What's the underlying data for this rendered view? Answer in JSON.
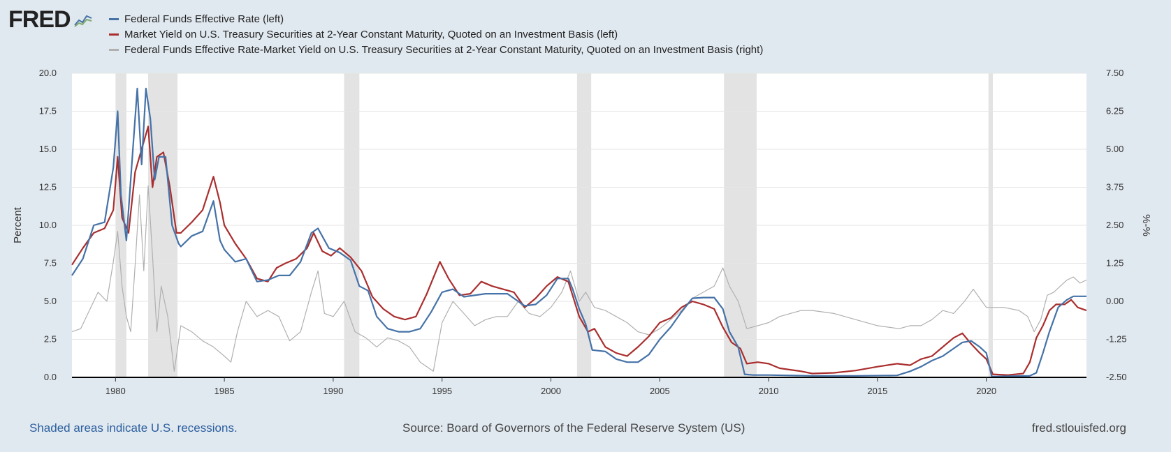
{
  "logo": {
    "text": "FRED"
  },
  "footer": {
    "recession_note": "Shaded areas indicate U.S. recessions.",
    "source": "Source: Board of Governors of the Federal Reserve System (US)",
    "site": "fred.stlouisfed.org"
  },
  "chart_data": {
    "type": "line",
    "title": "",
    "ylabel_left": "Percent",
    "ylabel_right": "%-%",
    "ylim_left": [
      0,
      20
    ],
    "ylim_right": [
      -2.5,
      7.5
    ],
    "xlim": [
      1978.0,
      2024.6
    ],
    "yticks_left": [
      "0.0",
      "2.5",
      "5.0",
      "7.5",
      "10.0",
      "12.5",
      "15.0",
      "17.5",
      "20.0"
    ],
    "yticks_right": [
      "-2.50",
      "-1.25",
      "0.00",
      "1.25",
      "2.50",
      "3.75",
      "5.00",
      "6.25",
      "7.50"
    ],
    "xticks": [
      "1980",
      "1985",
      "1990",
      "1995",
      "2000",
      "2005",
      "2010",
      "2015",
      "2020"
    ],
    "grid": true,
    "legend_position": "top-left",
    "recessions": [
      [
        1980.0,
        1980.5
      ],
      [
        1981.5,
        1982.85
      ],
      [
        1990.5,
        1991.2
      ],
      [
        2001.2,
        2001.85
      ],
      [
        2007.95,
        2009.45
      ],
      [
        2020.1,
        2020.3
      ]
    ],
    "series": [
      {
        "name": "Federal Funds Effective Rate (left)",
        "color": "#4572a7",
        "axis": "left",
        "x": [
          1978.0,
          1978.5,
          1979.0,
          1979.5,
          1979.9,
          1980.1,
          1980.25,
          1980.5,
          1980.8,
          1981.0,
          1981.2,
          1981.4,
          1981.6,
          1981.8,
          1982.0,
          1982.3,
          1982.6,
          1982.9,
          1983.0,
          1983.5,
          1984.0,
          1984.5,
          1984.8,
          1985.0,
          1985.5,
          1986.0,
          1986.5,
          1987.0,
          1987.5,
          1988.0,
          1988.5,
          1989.0,
          1989.3,
          1989.8,
          1990.3,
          1990.8,
          1991.2,
          1991.6,
          1992.0,
          1992.5,
          1993.0,
          1993.5,
          1994.0,
          1994.5,
          1995.0,
          1995.5,
          1996.0,
          1997.0,
          1998.0,
          1998.8,
          1999.3,
          1999.8,
          2000.3,
          2000.8,
          2001.0,
          2001.3,
          2001.6,
          2001.9,
          2002.5,
          2003.0,
          2003.5,
          2004.0,
          2004.5,
          2005.0,
          2005.5,
          2006.0,
          2006.5,
          2007.0,
          2007.5,
          2007.9,
          2008.2,
          2008.6,
          2008.9,
          2009.3,
          2010.0,
          2012.0,
          2014.0,
          2015.9,
          2016.5,
          2017.0,
          2017.5,
          2018.0,
          2018.5,
          2018.9,
          2019.3,
          2019.7,
          2020.0,
          2020.25,
          2021.0,
          2022.0,
          2022.3,
          2022.6,
          2022.9,
          2023.3,
          2023.7,
          2024.0,
          2024.6
        ],
        "y": [
          6.7,
          7.8,
          10.0,
          10.2,
          13.8,
          17.5,
          12.0,
          9.0,
          15.0,
          19.0,
          14.0,
          19.0,
          17.0,
          13.0,
          14.5,
          14.5,
          10.0,
          8.8,
          8.6,
          9.3,
          9.6,
          11.6,
          9.0,
          8.4,
          7.6,
          7.8,
          6.3,
          6.4,
          6.7,
          6.7,
          7.6,
          9.5,
          9.8,
          8.5,
          8.2,
          7.7,
          6.0,
          5.7,
          4.0,
          3.2,
          3.0,
          3.0,
          3.2,
          4.3,
          5.6,
          5.8,
          5.3,
          5.5,
          5.5,
          4.7,
          4.8,
          5.4,
          6.5,
          6.5,
          5.8,
          4.5,
          3.5,
          1.8,
          1.7,
          1.2,
          1.0,
          1.0,
          1.5,
          2.5,
          3.3,
          4.3,
          5.2,
          5.25,
          5.25,
          4.5,
          3.0,
          2.0,
          0.2,
          0.15,
          0.15,
          0.1,
          0.1,
          0.13,
          0.4,
          0.7,
          1.1,
          1.4,
          1.9,
          2.3,
          2.4,
          2.0,
          1.6,
          0.05,
          0.08,
          0.1,
          0.3,
          1.6,
          3.0,
          4.6,
          5.1,
          5.33,
          5.33
        ]
      },
      {
        "name": "Market Yield on U.S. Treasury Securities at 2-Year Constant Maturity, Quoted on an Investment Basis (left)",
        "color": "#aa2e2e",
        "axis": "left",
        "x": [
          1978.0,
          1978.5,
          1979.0,
          1979.5,
          1979.9,
          1980.1,
          1980.3,
          1980.6,
          1980.9,
          1981.2,
          1981.5,
          1981.7,
          1981.9,
          1982.2,
          1982.5,
          1982.8,
          1983.0,
          1983.5,
          1984.0,
          1984.5,
          1984.8,
          1985.0,
          1985.5,
          1986.0,
          1986.5,
          1987.0,
          1987.4,
          1987.8,
          1988.3,
          1988.8,
          1989.1,
          1989.5,
          1989.9,
          1990.3,
          1990.8,
          1991.3,
          1991.8,
          1992.3,
          1992.8,
          1993.3,
          1993.8,
          1994.3,
          1994.9,
          1995.3,
          1995.8,
          1996.3,
          1996.8,
          1997.3,
          1997.8,
          1998.3,
          1998.8,
          1999.3,
          1999.8,
          2000.3,
          2000.8,
          2001.3,
          2001.7,
          2002.0,
          2002.5,
          2003.0,
          2003.5,
          2004.0,
          2004.5,
          2005.0,
          2005.5,
          2006.0,
          2006.5,
          2007.0,
          2007.5,
          2007.9,
          2008.3,
          2008.7,
          2009.0,
          2009.5,
          2010.0,
          2010.5,
          2011.0,
          2011.5,
          2012.0,
          2013.0,
          2014.0,
          2015.0,
          2015.9,
          2016.5,
          2017.0,
          2017.5,
          2018.0,
          2018.5,
          2018.9,
          2019.3,
          2019.7,
          2020.0,
          2020.3,
          2021.0,
          2021.7,
          2022.0,
          2022.3,
          2022.6,
          2022.9,
          2023.2,
          2023.6,
          2023.9,
          2024.2,
          2024.6
        ],
        "y": [
          7.4,
          8.5,
          9.5,
          9.8,
          11.0,
          14.5,
          10.5,
          9.5,
          13.5,
          15.0,
          16.5,
          12.5,
          14.5,
          14.8,
          12.5,
          9.5,
          9.5,
          10.2,
          11.0,
          13.2,
          11.5,
          10.0,
          8.8,
          7.8,
          6.5,
          6.3,
          7.2,
          7.5,
          7.8,
          8.5,
          9.5,
          8.3,
          8.0,
          8.5,
          7.9,
          7.0,
          5.3,
          4.5,
          4.0,
          3.8,
          4.0,
          5.5,
          7.6,
          6.5,
          5.4,
          5.5,
          6.3,
          6.0,
          5.8,
          5.6,
          4.6,
          5.2,
          6.0,
          6.6,
          6.3,
          4.0,
          3.0,
          3.2,
          2.0,
          1.6,
          1.4,
          2.0,
          2.7,
          3.6,
          3.9,
          4.6,
          5.0,
          4.8,
          4.5,
          3.3,
          2.3,
          1.9,
          0.9,
          1.0,
          0.9,
          0.6,
          0.5,
          0.4,
          0.25,
          0.3,
          0.45,
          0.7,
          0.9,
          0.8,
          1.2,
          1.4,
          2.0,
          2.6,
          2.9,
          2.2,
          1.6,
          1.2,
          0.2,
          0.15,
          0.25,
          1.0,
          2.6,
          3.4,
          4.4,
          4.8,
          4.8,
          5.1,
          4.6,
          4.4
        ]
      },
      {
        "name": "Federal Funds Effective Rate-Market Yield on U.S. Treasury Securities at 2-Year Constant Maturity, Quoted on an Investment Basis (right)",
        "color": "#b0b0b0",
        "axis": "right",
        "x": [
          1978.0,
          1978.4,
          1978.8,
          1979.2,
          1979.6,
          1979.9,
          1980.1,
          1980.3,
          1980.5,
          1980.7,
          1980.9,
          1981.1,
          1981.3,
          1981.5,
          1981.7,
          1981.9,
          1982.1,
          1982.4,
          1982.7,
          1983.0,
          1983.5,
          1984.0,
          1984.5,
          1985.0,
          1985.3,
          1985.6,
          1986.0,
          1986.5,
          1987.0,
          1987.5,
          1988.0,
          1988.5,
          1989.0,
          1989.3,
          1989.6,
          1990.0,
          1990.5,
          1991.0,
          1991.5,
          1992.0,
          1992.5,
          1993.0,
          1993.5,
          1994.0,
          1994.6,
          1995.0,
          1995.5,
          1996.0,
          1996.5,
          1997.0,
          1997.5,
          1998.0,
          1998.5,
          1999.0,
          1999.5,
          2000.0,
          2000.5,
          2000.9,
          2001.3,
          2001.6,
          2002.0,
          2002.5,
          2003.0,
          2003.5,
          2004.0,
          2004.5,
          2005.0,
          2005.5,
          2006.0,
          2006.5,
          2007.0,
          2007.5,
          2007.9,
          2008.2,
          2008.6,
          2009.0,
          2009.5,
          2010.0,
          2010.5,
          2011.0,
          2011.5,
          2012.0,
          2013.0,
          2014.0,
          2015.0,
          2016.0,
          2016.5,
          2017.0,
          2017.5,
          2018.0,
          2018.5,
          2019.0,
          2019.4,
          2019.8,
          2020.0,
          2020.3,
          2020.8,
          2021.5,
          2021.9,
          2022.2,
          2022.5,
          2022.8,
          2023.1,
          2023.4,
          2023.7,
          2024.0,
          2024.3,
          2024.6
        ],
        "y": [
          -1.0,
          -0.9,
          -0.3,
          0.3,
          0.0,
          1.3,
          2.3,
          0.5,
          -0.5,
          -1.0,
          1.2,
          3.5,
          1.0,
          3.8,
          1.5,
          -1.0,
          0.5,
          -0.5,
          -2.3,
          -0.8,
          -1.0,
          -1.3,
          -1.5,
          -1.8,
          -2.0,
          -1.0,
          0.0,
          -0.5,
          -0.3,
          -0.5,
          -1.3,
          -1.0,
          0.3,
          1.0,
          -0.4,
          -0.5,
          0.0,
          -1.0,
          -1.2,
          -1.5,
          -1.2,
          -1.3,
          -1.5,
          -2.0,
          -2.3,
          -0.7,
          0.0,
          -0.4,
          -0.8,
          -0.6,
          -0.5,
          -0.5,
          0.0,
          -0.4,
          -0.5,
          -0.2,
          0.3,
          1.0,
          0.0,
          0.3,
          -0.2,
          -0.3,
          -0.5,
          -0.7,
          -1.0,
          -1.1,
          -0.9,
          -0.6,
          -0.3,
          0.1,
          0.3,
          0.5,
          1.1,
          0.5,
          0.0,
          -0.9,
          -0.8,
          -0.7,
          -0.5,
          -0.4,
          -0.3,
          -0.3,
          -0.4,
          -0.6,
          -0.8,
          -0.9,
          -0.8,
          -0.8,
          -0.6,
          -0.3,
          -0.4,
          0.0,
          0.4,
          0.0,
          -0.2,
          -0.2,
          -0.2,
          -0.3,
          -0.5,
          -1.0,
          -0.6,
          0.2,
          0.3,
          0.5,
          0.7,
          0.8,
          0.6,
          0.7
        ]
      }
    ]
  }
}
